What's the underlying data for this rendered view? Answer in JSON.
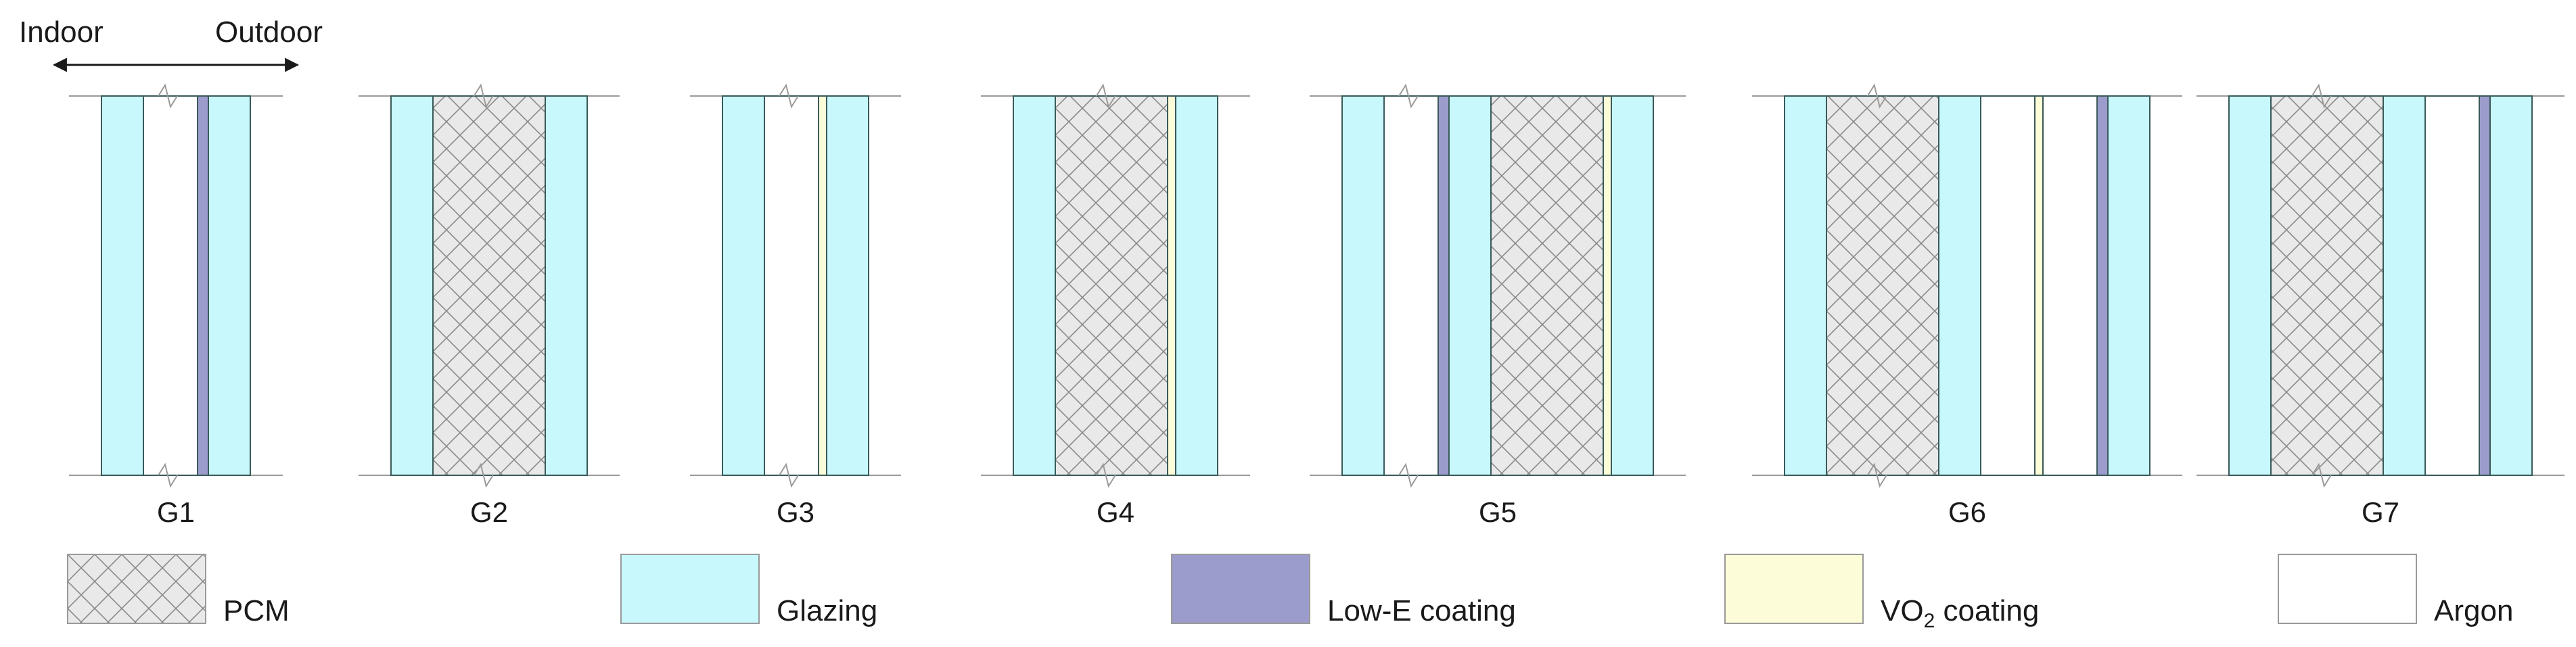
{
  "direction": {
    "left": "Indoor",
    "right": "Outdoor"
  },
  "colors": {
    "PCM": "#e9e9e9",
    "Glazing": "#c8f8fc",
    "Low-E coating": "#9c9ccc",
    "VO2 coating": "#fcfcd8",
    "Argon": "#ffffff",
    "outline": "#3a5a5a",
    "guide": "#9a9a9a"
  },
  "legend": [
    {
      "key": "PCM",
      "label": "PCM"
    },
    {
      "key": "Glazing",
      "label": "Glazing"
    },
    {
      "key": "Low-E coating",
      "label": "Low-E coating"
    },
    {
      "key": "VO2 coating",
      "label": "VO",
      "sub": "2",
      "label_rest": " coating"
    },
    {
      "key": "Argon",
      "label": "Argon"
    }
  ],
  "configurations": [
    {
      "name": "G1",
      "layers": [
        "Glazing",
        "Argon",
        "Low-E coating",
        "Glazing"
      ]
    },
    {
      "name": "G2",
      "layers": [
        "Glazing",
        "PCM",
        "Glazing"
      ]
    },
    {
      "name": "G3",
      "layers": [
        "Glazing",
        "Argon",
        "VO2 coating",
        "Glazing"
      ]
    },
    {
      "name": "G4",
      "layers": [
        "Glazing",
        "PCM",
        "VO2 coating",
        "Glazing"
      ]
    },
    {
      "name": "G5",
      "layers": [
        "Glazing",
        "Argon",
        "Low-E coating",
        "Glazing",
        "PCM",
        "VO2 coating",
        "Glazing"
      ]
    },
    {
      "name": "G6",
      "layers": [
        "Glazing",
        "PCM",
        "Glazing",
        "Argon",
        "VO2 coating",
        "Argon",
        "Low-E coating",
        "Glazing"
      ]
    },
    {
      "name": "G7",
      "layers": [
        "Glazing",
        "PCM",
        "Glazing",
        "Argon",
        "Low-E coating",
        "Glazing"
      ]
    }
  ]
}
